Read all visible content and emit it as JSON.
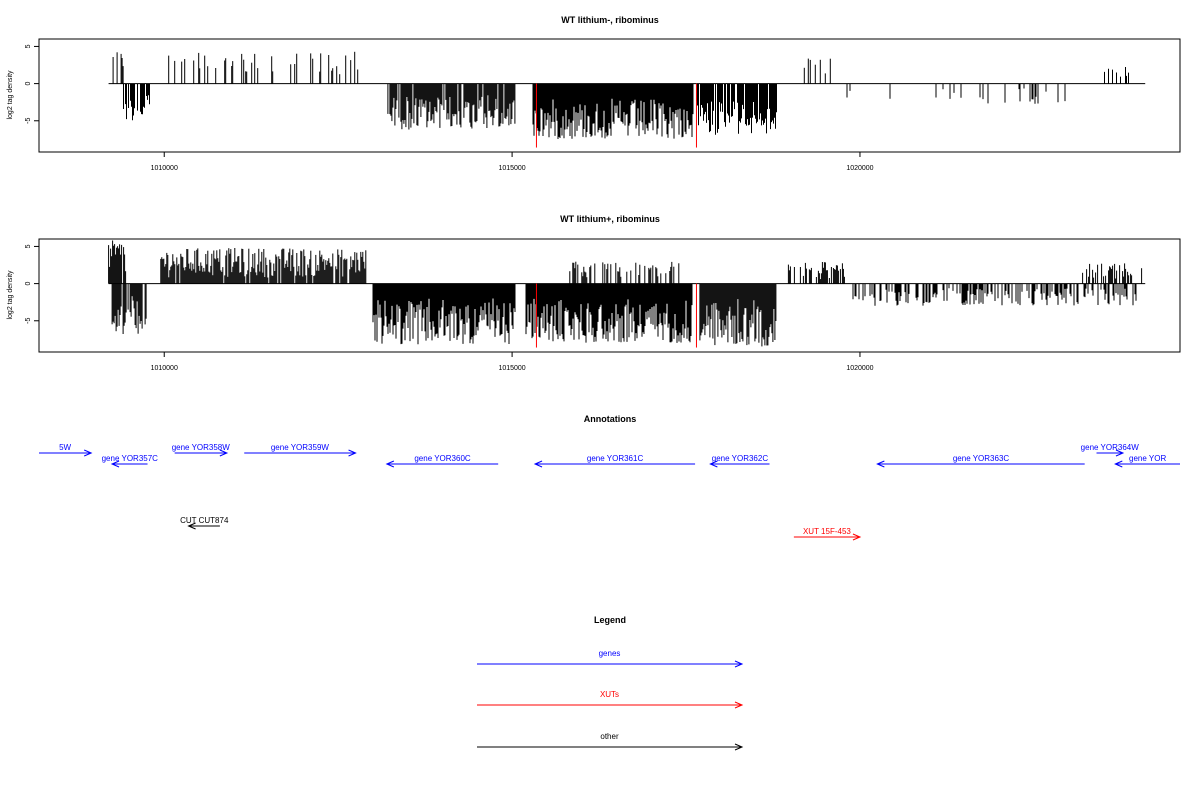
{
  "colors": {
    "genes": "#0000ff",
    "xuts": "#ff0000",
    "other": "#000000",
    "marker": "#ff0000"
  },
  "chart_data": [
    {
      "type": "bar",
      "title": "WT lithium-, ribominus",
      "ylabel": "log2 tag density",
      "xlim": [
        1008200,
        1024600
      ],
      "ylim": [
        -9.2,
        6
      ],
      "x_ticks": [
        1010000,
        1015000,
        1020000
      ],
      "x_tick_labels": [
        "1010000",
        "1015000",
        "1020000"
      ],
      "y_ticks": [
        5,
        0,
        -5
      ],
      "y_tick_labels": [
        "5",
        "0",
        "-5"
      ],
      "baseline_range": [
        1009200,
        1024100
      ],
      "markers_x": [
        1015350,
        1017650
      ],
      "markers_range": [
        -8.6,
        0
      ],
      "segments": [
        {
          "x0": 1009250,
          "x1": 1009450,
          "sign": 1,
          "min": 1.5,
          "max": 4.5,
          "density": 0.6
        },
        {
          "x0": 1009400,
          "x1": 1009800,
          "sign": -1,
          "min": 1.5,
          "max": 5.0,
          "density": 0.7
        },
        {
          "x0": 1010050,
          "x1": 1012800,
          "sign": 1,
          "min": 1.0,
          "max": 4.3,
          "density": 0.25
        },
        {
          "x0": 1013200,
          "x1": 1015050,
          "sign": -1,
          "min": 1.5,
          "max": 6.2,
          "density": 0.9
        },
        {
          "x0": 1015300,
          "x1": 1017600,
          "sign": -1,
          "min": 2.0,
          "max": 7.5,
          "density": 1.0
        },
        {
          "x0": 1017650,
          "x1": 1018800,
          "sign": -1,
          "min": 2.0,
          "max": 7.0,
          "density": 0.9
        },
        {
          "x0": 1019200,
          "x1": 1019600,
          "sign": 1,
          "min": 1.0,
          "max": 3.5,
          "density": 0.2
        },
        {
          "x0": 1019800,
          "x1": 1023300,
          "sign": -1,
          "min": 0.5,
          "max": 2.8,
          "density": 0.07
        },
        {
          "x0": 1023500,
          "x1": 1023900,
          "sign": 1,
          "min": 0.5,
          "max": 2.5,
          "density": 0.2
        }
      ]
    },
    {
      "type": "bar",
      "title": "WT lithium+, ribominus",
      "ylabel": "log2 tag density",
      "xlim": [
        1008200,
        1024600
      ],
      "ylim": [
        -9.2,
        6
      ],
      "x_ticks": [
        1010000,
        1015000,
        1020000
      ],
      "x_tick_labels": [
        "1010000",
        "1015000",
        "1020000"
      ],
      "y_ticks": [
        5,
        0,
        -5
      ],
      "y_tick_labels": [
        "5",
        "0",
        "-5"
      ],
      "baseline_range": [
        1009200,
        1024100
      ],
      "markers_x": [
        1015350,
        1017650
      ],
      "markers_range": [
        -8.6,
        0
      ],
      "segments": [
        {
          "x0": 1009200,
          "x1": 1009450,
          "sign": 1,
          "min": 1.5,
          "max": 5.8,
          "density": 0.8
        },
        {
          "x0": 1009250,
          "x1": 1009750,
          "sign": -1,
          "min": 1.5,
          "max": 6.8,
          "density": 0.85
        },
        {
          "x0": 1009950,
          "x1": 1012900,
          "sign": 1,
          "min": 0.8,
          "max": 4.8,
          "density": 0.9
        },
        {
          "x0": 1013000,
          "x1": 1015050,
          "sign": -1,
          "min": 2.0,
          "max": 8.2,
          "density": 1.0
        },
        {
          "x0": 1015200,
          "x1": 1017600,
          "sign": -1,
          "min": 2.0,
          "max": 8.0,
          "density": 1.0
        },
        {
          "x0": 1015800,
          "x1": 1017400,
          "sign": 1,
          "min": 0.5,
          "max": 3.0,
          "density": 0.4
        },
        {
          "x0": 1017700,
          "x1": 1018800,
          "sign": -1,
          "min": 2.0,
          "max": 8.5,
          "density": 1.0
        },
        {
          "x0": 1018900,
          "x1": 1019800,
          "sign": 1,
          "min": 0.5,
          "max": 3.0,
          "density": 0.5
        },
        {
          "x0": 1019900,
          "x1": 1024000,
          "sign": -1,
          "min": 0.5,
          "max": 3.0,
          "density": 0.5
        },
        {
          "x0": 1023200,
          "x1": 1024050,
          "sign": 1,
          "min": 0.5,
          "max": 2.8,
          "density": 0.5
        }
      ]
    }
  ],
  "annotations": {
    "title": "Annotations",
    "features": [
      {
        "label": "5W",
        "type": "gene",
        "dir": "+",
        "x0": 1008200,
        "x1": 1008950,
        "row": 0
      },
      {
        "label": "gene YOR357C",
        "type": "gene",
        "dir": "-",
        "x0": 1009250,
        "x1": 1009760,
        "row": 1
      },
      {
        "label": "gene YOR358W",
        "type": "gene",
        "dir": "+",
        "x0": 1010150,
        "x1": 1010900,
        "row": 0
      },
      {
        "label": "gene YOR359W",
        "type": "gene",
        "dir": "+",
        "x0": 1011150,
        "x1": 1012750,
        "row": 0
      },
      {
        "label": "gene YOR360C",
        "type": "gene",
        "dir": "-",
        "x0": 1013200,
        "x1": 1014800,
        "row": 1
      },
      {
        "label": "gene YOR361C",
        "type": "gene",
        "dir": "-",
        "x0": 1015330,
        "x1": 1017630,
        "row": 1
      },
      {
        "label": "gene YOR362C",
        "type": "gene",
        "dir": "-",
        "x0": 1017850,
        "x1": 1018700,
        "row": 1
      },
      {
        "label": "gene YOR363C",
        "type": "gene",
        "dir": "-",
        "x0": 1020250,
        "x1": 1023230,
        "row": 1
      },
      {
        "label": "gene YOR364W",
        "type": "gene",
        "dir": "+",
        "x0": 1023400,
        "x1": 1023780,
        "row": 0
      },
      {
        "label": "gene YOR",
        "type": "gene",
        "dir": "-",
        "x0": 1023670,
        "x1": 1024600,
        "row": 1
      },
      {
        "label": "CUT CUT874",
        "type": "other",
        "dir": "-",
        "x0": 1010350,
        "x1": 1010800,
        "row": 2
      },
      {
        "label": "XUT 15F-453",
        "type": "xut",
        "dir": "+",
        "x0": 1019050,
        "x1": 1020000,
        "row": 3
      }
    ]
  },
  "legend": {
    "title": "Legend",
    "items": [
      {
        "label": "genes",
        "type": "genes"
      },
      {
        "label": "XUTs",
        "type": "xuts"
      },
      {
        "label": "other",
        "type": "other"
      }
    ]
  }
}
